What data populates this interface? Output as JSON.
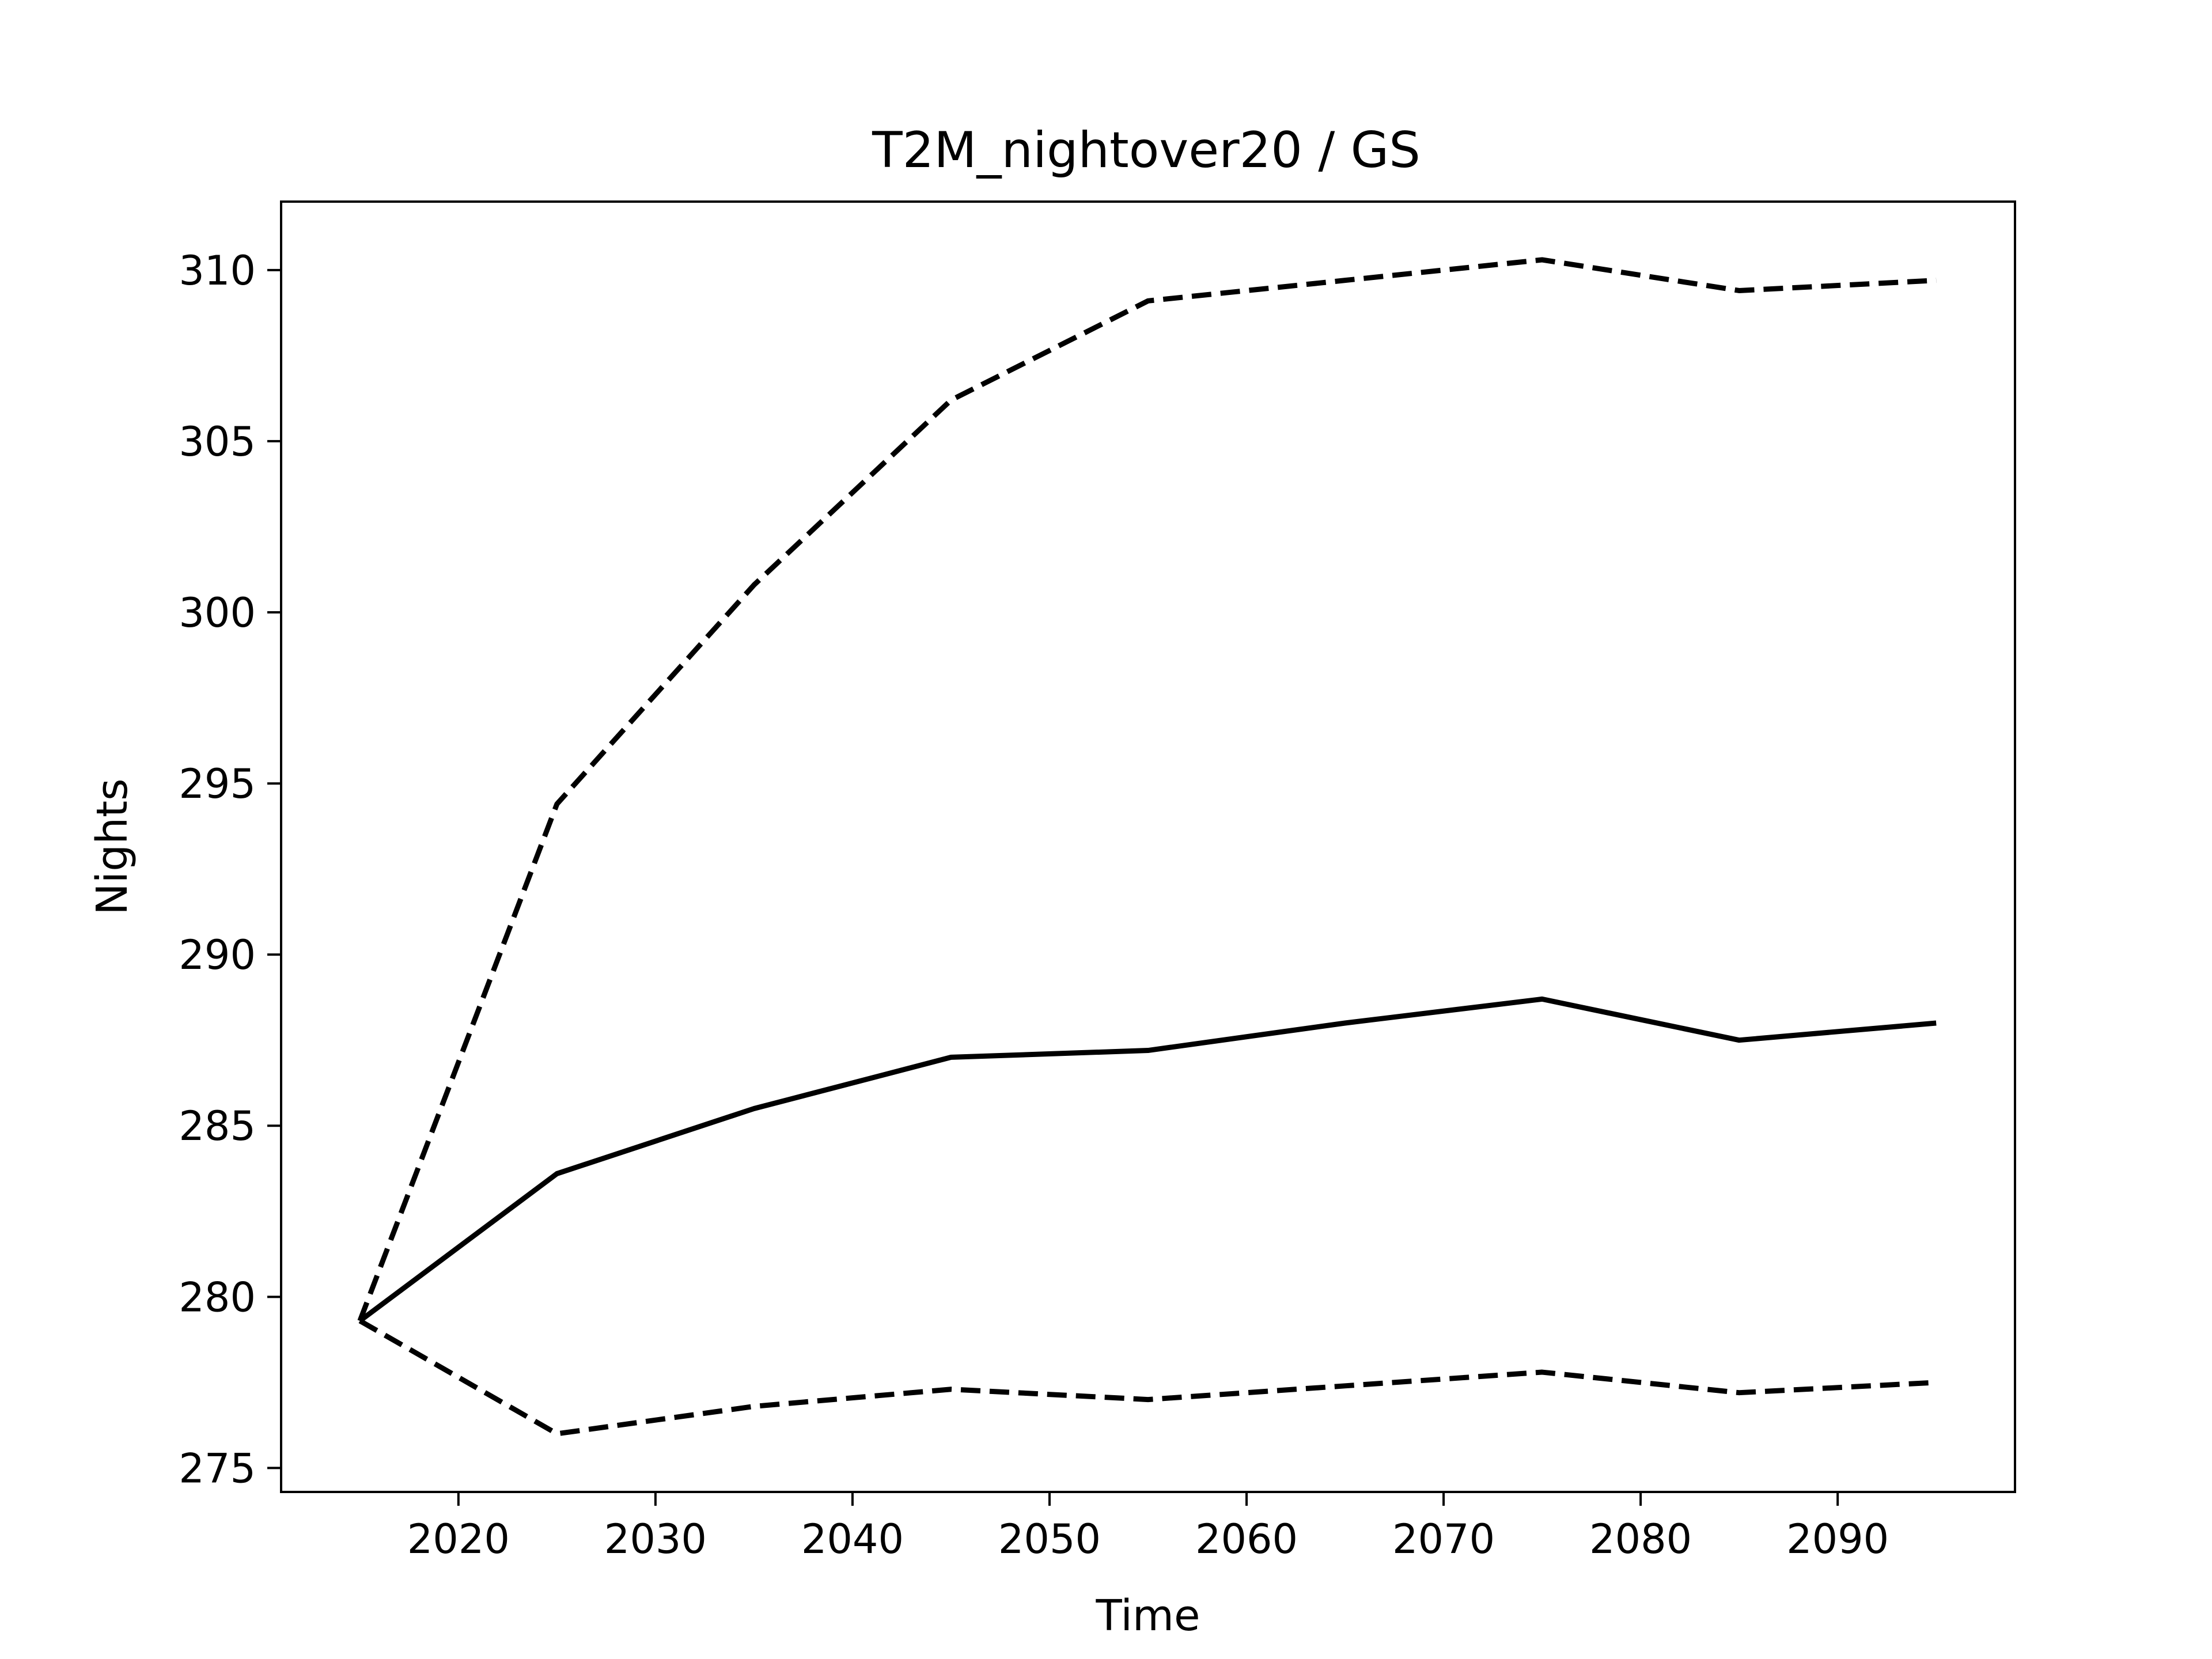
{
  "chart_data": {
    "type": "line",
    "title": "T2M_nightover20 / GS",
    "xlabel": "Time",
    "ylabel": "Nights",
    "xlim": [
      2011,
      2099
    ],
    "ylim": [
      274.3,
      312.0
    ],
    "xticks": [
      2020,
      2030,
      2040,
      2050,
      2060,
      2070,
      2080,
      2090
    ],
    "yticks": [
      275,
      280,
      285,
      290,
      295,
      300,
      305,
      310
    ],
    "grid": false,
    "legend": "none",
    "x": [
      2015,
      2025,
      2035,
      2045,
      2055,
      2065,
      2075,
      2085,
      2095
    ],
    "series": [
      {
        "style": "dashed",
        "color": "#000000",
        "values": [
          279.3,
          294.4,
          300.8,
          306.2,
          309.1,
          309.7,
          310.3,
          309.4,
          309.7
        ]
      },
      {
        "style": "solid",
        "color": "#000000",
        "values": [
          279.3,
          283.6,
          285.5,
          287.0,
          287.2,
          288.0,
          288.7,
          287.5,
          288.0
        ]
      },
      {
        "style": "dashed",
        "color": "#000000",
        "values": [
          279.3,
          276.0,
          276.8,
          277.3,
          277.0,
          277.4,
          277.8,
          277.2,
          277.5
        ]
      }
    ]
  }
}
